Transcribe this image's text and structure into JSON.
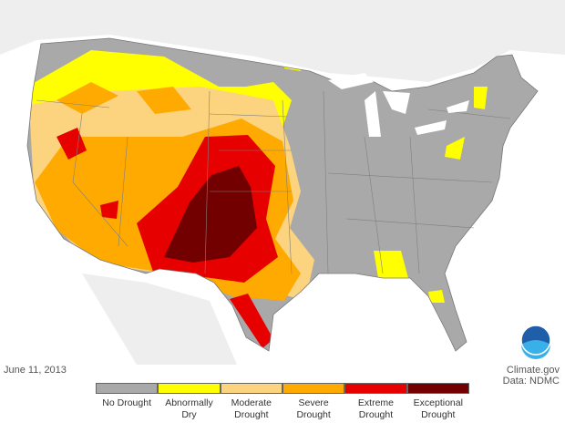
{
  "map": {
    "date": "June 11, 2013",
    "credit": "Climate.gov",
    "data_source": "Data: NDMC",
    "legend": [
      {
        "label": "No Drought",
        "color": "#a9a9a9"
      },
      {
        "label": "Abnormally Dry",
        "color": "#ffff00"
      },
      {
        "label": "Moderate Drought",
        "color": "#fcd37f"
      },
      {
        "label": "Severe Drought",
        "color": "#ffaa00"
      },
      {
        "label": "Extreme Drought",
        "color": "#e60000"
      },
      {
        "label": "Exceptional Drought",
        "color": "#730000"
      }
    ]
  }
}
